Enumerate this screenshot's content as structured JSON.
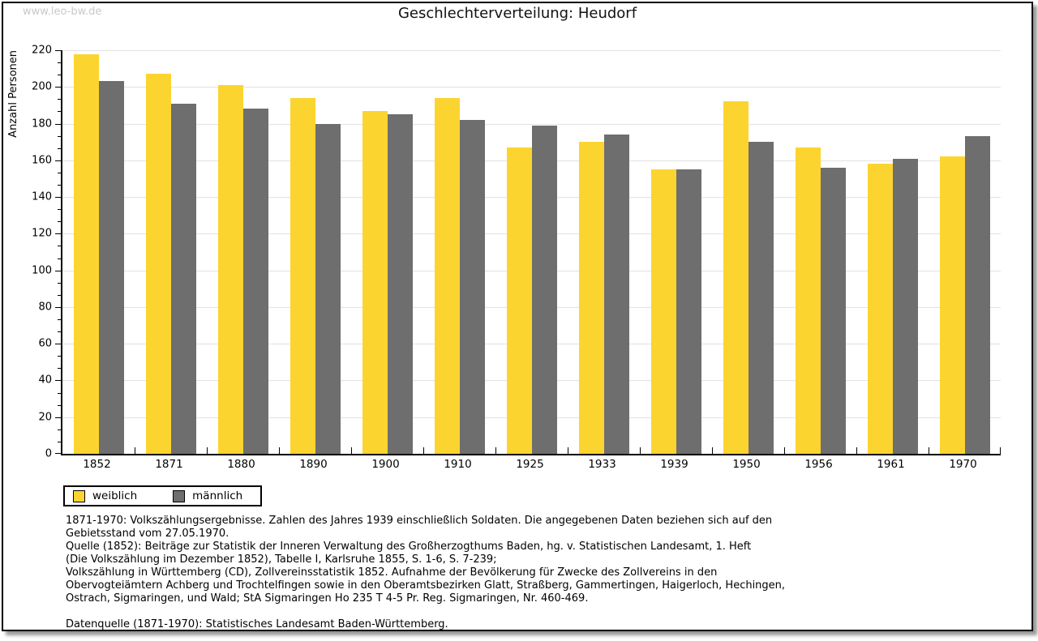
{
  "watermark": "www.leo-bw.de",
  "title": "Geschlechterverteilung: Heudorf",
  "chart_data": {
    "type": "bar",
    "title": "Geschlechterverteilung: Heudorf",
    "xlabel": "",
    "ylabel": "Anzahl Personen",
    "categories": [
      "1852",
      "1871",
      "1880",
      "1890",
      "1900",
      "1910",
      "1925",
      "1933",
      "1939",
      "1950",
      "1956",
      "1961",
      "1970"
    ],
    "series": [
      {
        "name": "weiblich",
        "color": "#fcd42f",
        "values": [
          218,
          207,
          201,
          194,
          187,
          194,
          167,
          170,
          155,
          192,
          167,
          158,
          162
        ]
      },
      {
        "name": "männlich",
        "color": "#6e6e6e",
        "values": [
          203,
          191,
          188,
          180,
          185,
          182,
          179,
          174,
          155,
          170,
          156,
          161,
          173
        ]
      }
    ],
    "ylim": [
      0,
      220
    ],
    "yticks": [
      0,
      20,
      40,
      60,
      80,
      100,
      120,
      140,
      160,
      180,
      200,
      220
    ],
    "minor_ticks_per_interval": 2,
    "grid": true,
    "legend_position": "bottom-left"
  },
  "colors": {
    "weiblich": "#fcd42f",
    "maennlich": "#6e6e6e",
    "gridline": "#e2e2e2",
    "watermark_text": "#c9c9c9"
  },
  "footer": {
    "lines": [
      "1871-1970: Volkszählungsergebnisse. Zahlen des Jahres 1939 einschließlich Soldaten. Die angegebenen Daten beziehen sich auf den",
      "Gebietsstand vom 27.05.1970.",
      "Quelle (1852): Beiträge zur Statistik der Inneren Verwaltung des Großherzogthums Baden, hg. v. Statistischen Landesamt, 1. Heft",
      "(Die Volkszählung im Dezember 1852), Tabelle I, Karlsruhe 1855, S. 1-6, S. 7-239;",
      "Volkszählung in Württemberg (CD), Zollvereinsstatistik 1852. Aufnahme der Bevölkerung für Zwecke des Zollvereins in den",
      "Obervogteiämtern Achberg und Trochtelfingen sowie in den Oberamtsbezirken Glatt, Straßberg, Gammertingen, Haigerloch, Hechingen,",
      "Ostrach, Sigmaringen, und Wald; StA Sigmaringen Ho 235 T 4-5 Pr. Reg. Sigmaringen, Nr. 460-469.",
      "",
      "Datenquelle (1871-1970): Statistisches Landesamt Baden-Württemberg."
    ]
  }
}
